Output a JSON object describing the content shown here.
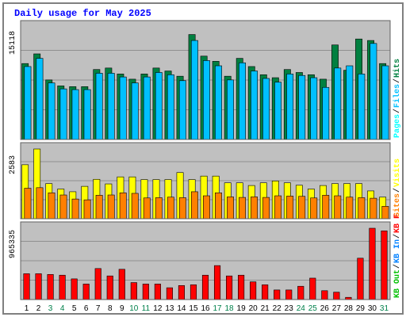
{
  "chart_data": {
    "type": "bar",
    "title": "Daily usage for May 2025",
    "categories": [
      "1",
      "2",
      "3",
      "4",
      "5",
      "6",
      "7",
      "8",
      "9",
      "10",
      "11",
      "12",
      "13",
      "14",
      "15",
      "16",
      "17",
      "18",
      "19",
      "20",
      "21",
      "22",
      "23",
      "24",
      "25",
      "26",
      "27",
      "28",
      "29",
      "30",
      "31"
    ],
    "weekend_days": [
      "3",
      "4",
      "10",
      "11",
      "17",
      "18",
      "24",
      "25",
      "31"
    ],
    "panels": [
      {
        "id": "hits-files-pages",
        "ymax_label": "15118",
        "ylim": [
          0,
          15118
        ],
        "series": [
          {
            "name": "Hits",
            "color": "#008040",
            "values": [
              10200,
              11500,
              8000,
              7200,
              7100,
              7100,
              9400,
              9600,
              8800,
              8100,
              8800,
              9600,
              9200,
              8500,
              14100,
              11200,
              10500,
              8500,
              10900,
              9800,
              8700,
              8300,
              9400,
              9000,
              8700,
              8100,
              12700,
              9300,
              13500,
              13300,
              10200
            ]
          },
          {
            "name": "Files",
            "color": "#00c0ff",
            "values": [
              9800,
              10900,
              7600,
              6800,
              6700,
              6700,
              8900,
              8900,
              8400,
              7600,
              8400,
              9000,
              8700,
              7900,
              13300,
              10600,
              9900,
              8000,
              10300,
              9200,
              8200,
              7700,
              8800,
              8600,
              8300,
              7000,
              9600,
              9900,
              8800,
              12900,
              9900
            ]
          },
          {
            "name": "Pages",
            "color": "#00ffff",
            "values": []
          }
        ]
      },
      {
        "id": "visits-sites",
        "ymax_label": "2583",
        "ylim": [
          0,
          2583
        ],
        "series": [
          {
            "name": "Visits",
            "color": "#ffff00",
            "values": [
              2000,
              2583,
              1300,
              1100,
              1000,
              1200,
              1460,
              1290,
              1550,
              1550,
              1450,
              1450,
              1450,
              1710,
              1450,
              1580,
              1580,
              1330,
              1330,
              1230,
              1330,
              1400,
              1330,
              1240,
              1100,
              1230,
              1300,
              1300,
              1300,
              1030,
              800
            ]
          },
          {
            "name": "Sites",
            "color": "#ff8000",
            "values": [
              1130,
              1150,
              960,
              880,
              730,
              700,
              870,
              880,
              960,
              940,
              770,
              780,
              800,
              780,
              1000,
              850,
              960,
              810,
              790,
              810,
              790,
              850,
              840,
              830,
              770,
              870,
              850,
              800,
              780,
              760,
              460
            ]
          }
        ]
      },
      {
        "id": "kbytes",
        "ymax_label": "965335",
        "ylim": [
          0,
          965335
        ],
        "series": [
          {
            "name": "KB F",
            "color": "#ff0000",
            "values": [
              350000,
              350000,
              340000,
              330000,
              280000,
              210000,
              420000,
              320000,
              410000,
              230000,
              210000,
              210000,
              160000,
              190000,
              200000,
              330000,
              460000,
              320000,
              330000,
              240000,
              200000,
              130000,
              130000,
              180000,
              290000,
              120000,
              100000,
              30000,
              560000,
              965335,
              930000
            ]
          },
          {
            "name": "KB In",
            "color": "#0080ff",
            "values": []
          },
          {
            "name": "KB Out",
            "color": "#00c000",
            "values": []
          }
        ]
      }
    ]
  },
  "colors": {
    "title": "#0000ff",
    "frame": "#808080",
    "plot_bg": "#c0c0c0",
    "border_dark": "#606060",
    "border_light": "#ffffff",
    "weekday_label": "#000000",
    "weekend_label": "#00804b"
  }
}
